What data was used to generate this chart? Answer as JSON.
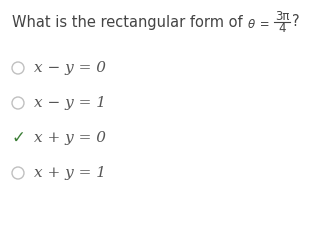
{
  "background_color": "#ffffff",
  "title_part1": "What is the rectangular form of ",
  "theta_sym": "θ",
  "frac_num": "3π",
  "frac_den": "4",
  "options": [
    {
      "label": "x − y = 0",
      "correct": false
    },
    {
      "label": "x − y = 1",
      "correct": false
    },
    {
      "label": "x + y = 0",
      "correct": true
    },
    {
      "label": "x + y = 1",
      "correct": false
    }
  ],
  "circle_color": "#c0c0c0",
  "check_color": "#3a7d34",
  "text_color": "#555555",
  "title_color": "#444444",
  "title_fontsize": 10.5,
  "option_fontsize": 11,
  "small_fontsize": 8.5,
  "fig_width": 3.29,
  "fig_height": 2.46,
  "dpi": 100
}
